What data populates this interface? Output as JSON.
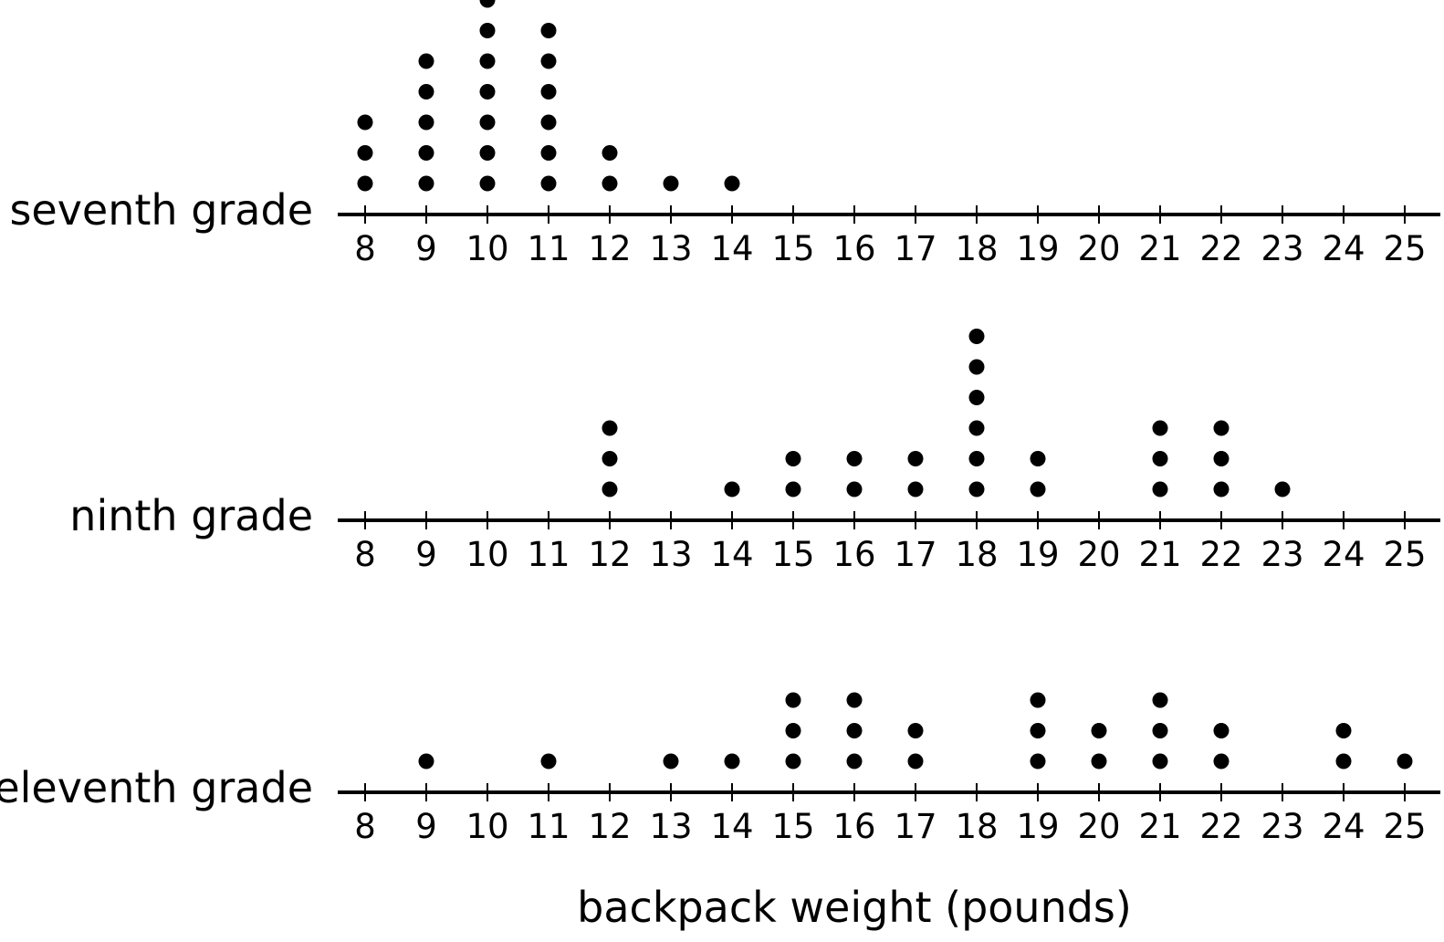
{
  "chart_data": {
    "type": "dot plot",
    "xlabel": "backpack weight (pounds)",
    "xlim": [
      8,
      25
    ],
    "xticks": [
      8,
      9,
      10,
      11,
      12,
      13,
      14,
      15,
      16,
      17,
      18,
      19,
      20,
      21,
      22,
      23,
      24,
      25
    ],
    "series": [
      {
        "name": "seventh grade",
        "counts": [
          {
            "x": 8,
            "count": 3
          },
          {
            "x": 9,
            "count": 5
          },
          {
            "x": 10,
            "count": 7
          },
          {
            "x": 11,
            "count": 6
          },
          {
            "x": 12,
            "count": 2
          },
          {
            "x": 13,
            "count": 1
          },
          {
            "x": 14,
            "count": 1
          }
        ]
      },
      {
        "name": "ninth grade",
        "counts": [
          {
            "x": 12,
            "count": 3
          },
          {
            "x": 14,
            "count": 1
          },
          {
            "x": 15,
            "count": 2
          },
          {
            "x": 16,
            "count": 2
          },
          {
            "x": 17,
            "count": 2
          },
          {
            "x": 18,
            "count": 6
          },
          {
            "x": 19,
            "count": 2
          },
          {
            "x": 21,
            "count": 3
          },
          {
            "x": 22,
            "count": 3
          },
          {
            "x": 23,
            "count": 1
          }
        ]
      },
      {
        "name": "eleventh grade",
        "counts": [
          {
            "x": 9,
            "count": 1
          },
          {
            "x": 11,
            "count": 1
          },
          {
            "x": 13,
            "count": 1
          },
          {
            "x": 14,
            "count": 1
          },
          {
            "x": 15,
            "count": 3
          },
          {
            "x": 16,
            "count": 3
          },
          {
            "x": 17,
            "count": 2
          },
          {
            "x": 19,
            "count": 3
          },
          {
            "x": 20,
            "count": 2
          },
          {
            "x": 21,
            "count": 3
          },
          {
            "x": 22,
            "count": 2
          },
          {
            "x": 24,
            "count": 2
          },
          {
            "x": 25,
            "count": 1
          }
        ]
      }
    ]
  }
}
